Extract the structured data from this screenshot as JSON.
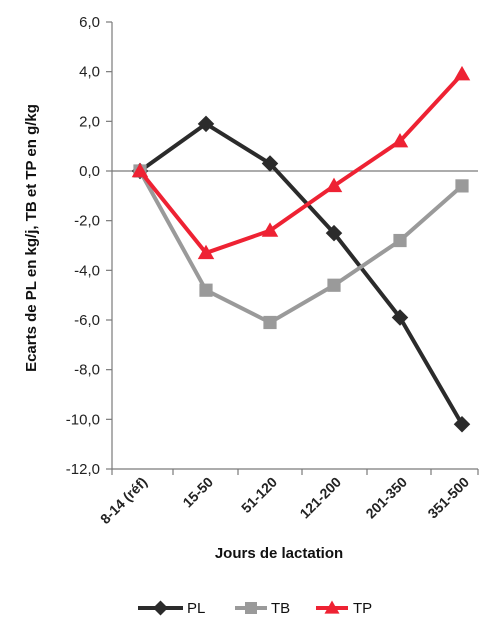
{
  "chart_data": {
    "type": "line",
    "categories": [
      "8-14 (réf)",
      "15-50",
      "51-120",
      "121-200",
      "201-350",
      "351-500"
    ],
    "series": [
      {
        "name": "PL",
        "values": [
          0.0,
          1.9,
          0.3,
          -2.5,
          -5.9,
          -10.2
        ],
        "color": "#2b2b2b",
        "marker": "diamond"
      },
      {
        "name": "TB",
        "values": [
          0.0,
          -4.8,
          -6.1,
          -4.6,
          -2.8,
          -0.6
        ],
        "color": "#9a9a9a",
        "marker": "square"
      },
      {
        "name": "TP",
        "values": [
          0.0,
          -3.3,
          -2.4,
          -0.6,
          1.2,
          3.9
        ],
        "color": "#ee2233",
        "marker": "triangle"
      }
    ],
    "ylabel": "Ecarts de PL en kg/j, TB et TP en g/kg",
    "xlabel": "Jours de lactation",
    "ylim": [
      -12.0,
      6.0
    ],
    "yticks": [
      "6,0",
      "4,0",
      "2,0",
      "0,0",
      "-2,0",
      "-4,0",
      "-6,0",
      "-8,0",
      "-10,0",
      "-12,0"
    ],
    "ytick_values": [
      6,
      4,
      2,
      0,
      -2,
      -4,
      -6,
      -8,
      -10,
      -12
    ],
    "grid": false,
    "legend": "bottom"
  }
}
